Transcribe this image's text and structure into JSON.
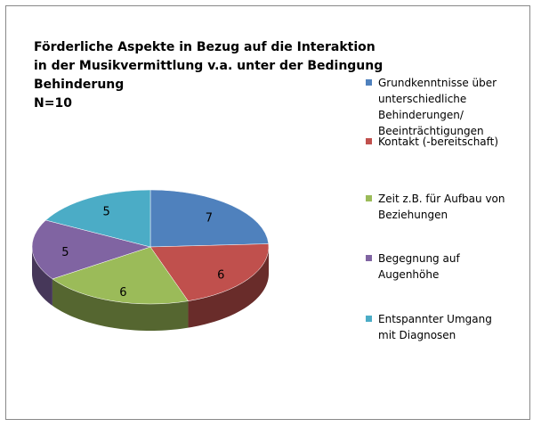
{
  "chart_data": {
    "type": "pie",
    "title": [
      "Förderliche Aspekte in Bezug auf die Interaktion",
      "in der Musikvermittlung v.a. unter der Bedingung",
      "Behinderung",
      "N=10"
    ],
    "categories": [
      "Grundkenntnisse über unterschiedliche Behinderungen/ Beeinträchtigungen",
      "Kontakt (-bereitschaft)",
      "Zeit z.B. für Aufbau von Beziehungen",
      "Begegnung auf Augenhöhe",
      "Entspannter Umgang mit Diagnosen"
    ],
    "values": [
      7,
      6,
      6,
      5,
      5
    ],
    "colors": [
      "#4f81bd",
      "#c0504d",
      "#9bbb59",
      "#8064a2",
      "#4bacc6"
    ],
    "legend": "right"
  }
}
